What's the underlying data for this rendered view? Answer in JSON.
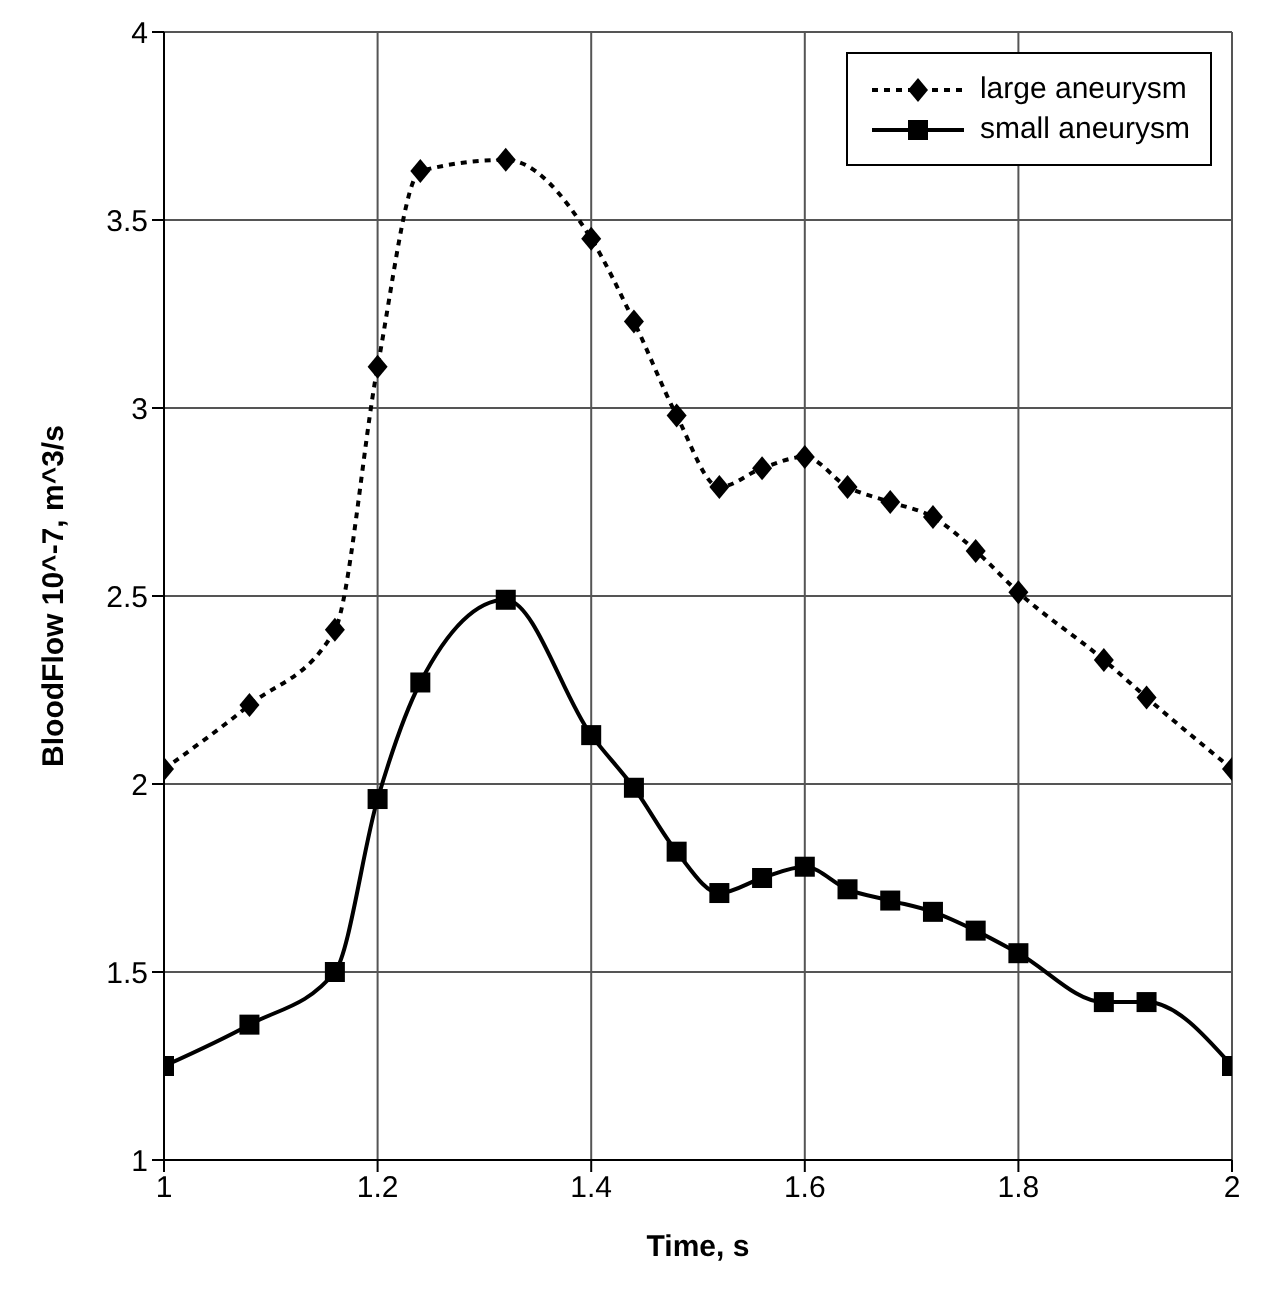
{
  "chart_data": {
    "type": "line",
    "xlabel": "Time, s",
    "ylabel": "BloodFlow 10^-7, m^3/s",
    "x": [
      1,
      1.08,
      1.16,
      1.2,
      1.24,
      1.32,
      1.4,
      1.44,
      1.48,
      1.52,
      1.56,
      1.6,
      1.64,
      1.68,
      1.72,
      1.76,
      1.8,
      1.88,
      1.92,
      2
    ],
    "series": [
      {
        "name": "large aneurysm",
        "color": "#000000",
        "marker": "diamond",
        "line_style": "dotted",
        "values": [
          2.04,
          2.21,
          2.41,
          3.11,
          3.63,
          3.66,
          3.45,
          3.23,
          2.98,
          2.79,
          2.84,
          2.87,
          2.79,
          2.75,
          2.71,
          2.62,
          2.51,
          2.33,
          2.23,
          2.04
        ]
      },
      {
        "name": "small aneurysm",
        "color": "#000000",
        "marker": "square",
        "line_style": "solid",
        "values": [
          1.25,
          1.36,
          1.5,
          1.96,
          2.27,
          2.49,
          2.13,
          1.99,
          1.82,
          1.71,
          1.75,
          1.78,
          1.72,
          1.69,
          1.66,
          1.61,
          1.55,
          1.42,
          1.42,
          1.25
        ]
      }
    ],
    "xlim": [
      1,
      2
    ],
    "xticks": [
      1,
      1.2,
      1.4,
      1.6,
      1.8,
      2
    ],
    "ylim": [
      1,
      4
    ],
    "yticks": [
      1,
      1.5,
      2,
      2.5,
      3,
      3.5,
      4
    ],
    "grid": true,
    "legend": "top right"
  }
}
